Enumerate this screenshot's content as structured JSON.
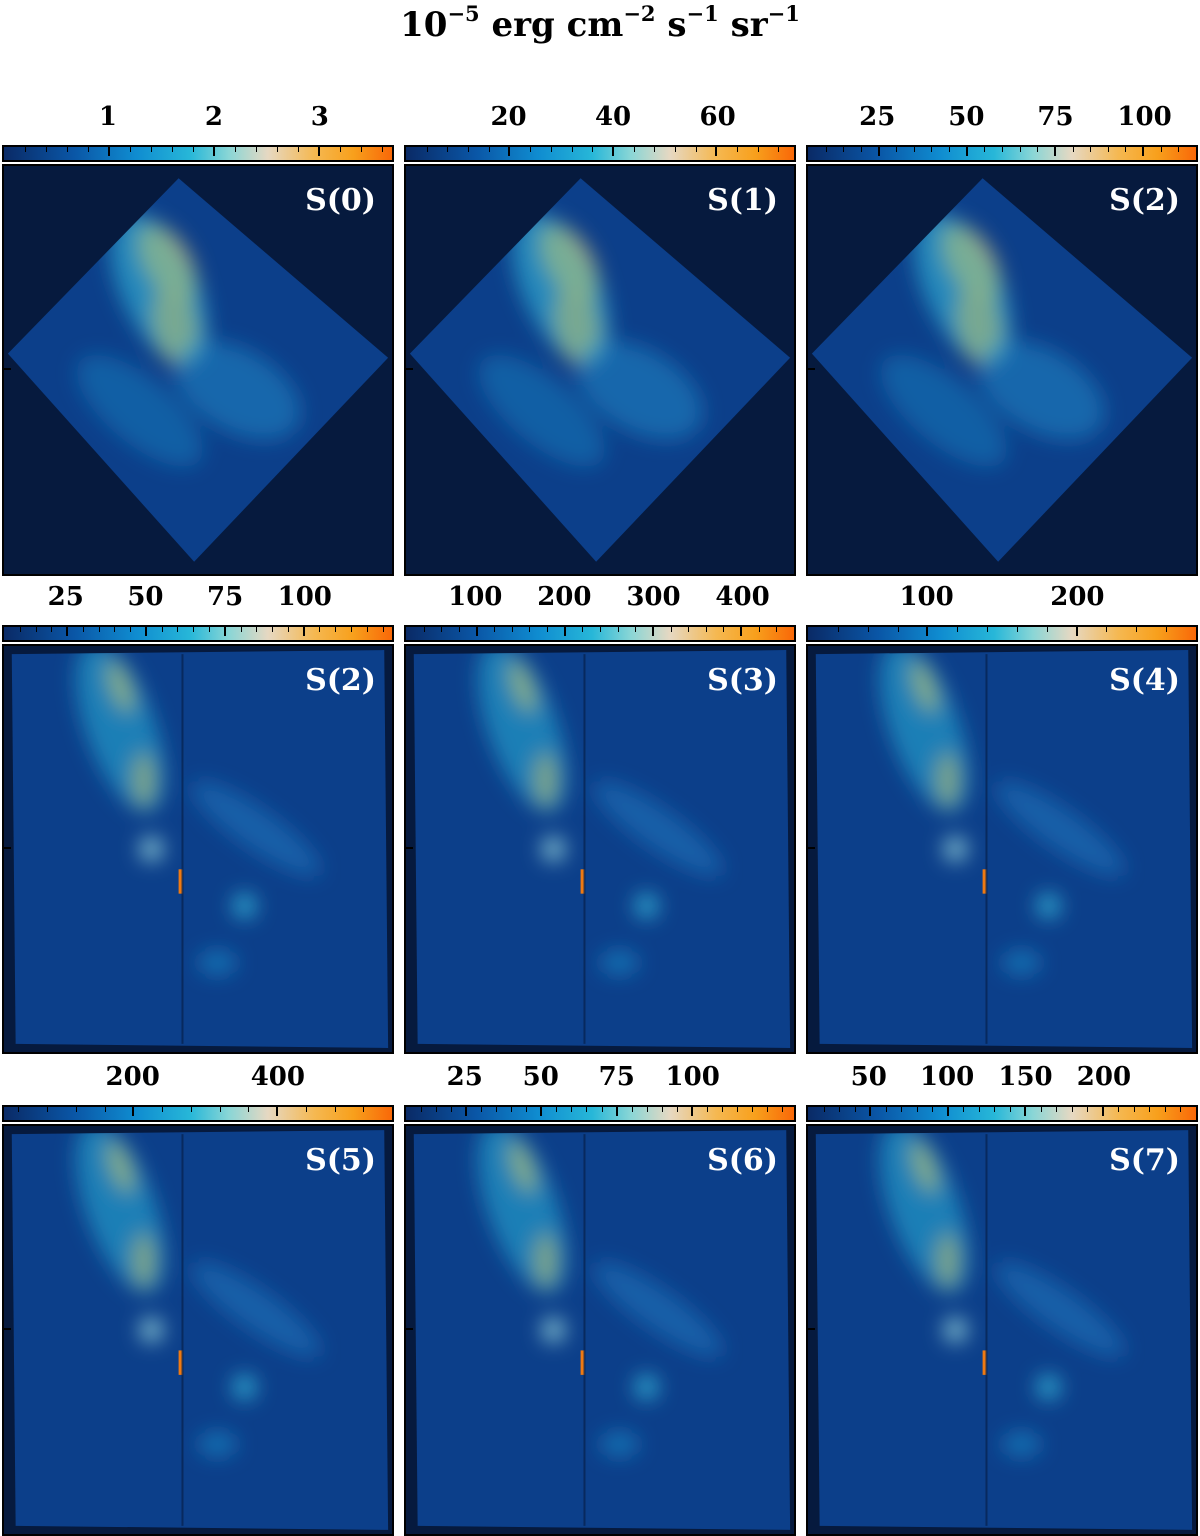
{
  "figure": {
    "title_parts": {
      "base": "10",
      "exp1": "−5",
      "text1": " erg cm",
      "exp2": "−2",
      "text2": " s",
      "exp3": "−1",
      "text3": " sr",
      "exp4": "−1"
    }
  },
  "colors": {
    "background": "#061a3e",
    "colormap": [
      "#0a2a66",
      "#0a56a6",
      "#0f8cd0",
      "#27b7d8",
      "#8ad6d6",
      "#e6d8c2",
      "#f5b851",
      "#f8a01c",
      "#f96808"
    ]
  },
  "panels": [
    {
      "label": "S(0)",
      "colorbar": {
        "ticks": [
          "1",
          "2",
          "3"
        ],
        "values": [
          1,
          2,
          3
        ],
        "range": [
          0.0,
          3.7
        ]
      },
      "footprint": "rotated"
    },
    {
      "label": "S(1)",
      "colorbar": {
        "ticks": [
          "20",
          "40",
          "60"
        ],
        "values": [
          20,
          40,
          60
        ],
        "range": [
          0,
          75
        ]
      },
      "footprint": "rotated"
    },
    {
      "label": "S(2)",
      "colorbar": {
        "ticks": [
          "25",
          "50",
          "75",
          "100"
        ],
        "values": [
          25,
          50,
          75,
          100
        ],
        "range": [
          5,
          115
        ]
      },
      "footprint": "rotated"
    },
    {
      "label": "S(2)",
      "colorbar": {
        "ticks": [
          "25",
          "50",
          "75",
          "100"
        ],
        "values": [
          25,
          50,
          75,
          100
        ],
        "range": [
          5,
          128
        ]
      },
      "footprint": "square"
    },
    {
      "label": "S(3)",
      "colorbar": {
        "ticks": [
          "100",
          "200",
          "300",
          "400"
        ],
        "values": [
          100,
          200,
          300,
          400
        ],
        "range": [
          20,
          460
        ]
      },
      "footprint": "square"
    },
    {
      "label": "S(4)",
      "colorbar": {
        "ticks": [
          "100",
          "200"
        ],
        "values": [
          100,
          200
        ],
        "range": [
          20,
          280
        ]
      },
      "footprint": "square"
    },
    {
      "label": "S(5)",
      "colorbar": {
        "ticks": [
          "200",
          "400"
        ],
        "values": [
          200,
          400
        ],
        "range": [
          20,
          560
        ]
      },
      "footprint": "square"
    },
    {
      "label": "S(6)",
      "colorbar": {
        "ticks": [
          "25",
          "50",
          "75",
          "100"
        ],
        "values": [
          25,
          50,
          75,
          100
        ],
        "range": [
          5,
          134
        ]
      },
      "footprint": "square"
    },
    {
      "label": "S(7)",
      "colorbar": {
        "ticks": [
          "50",
          "100",
          "150",
          "200"
        ],
        "values": [
          50,
          100,
          150,
          200
        ],
        "range": [
          10,
          260
        ]
      },
      "footprint": "square"
    }
  ]
}
